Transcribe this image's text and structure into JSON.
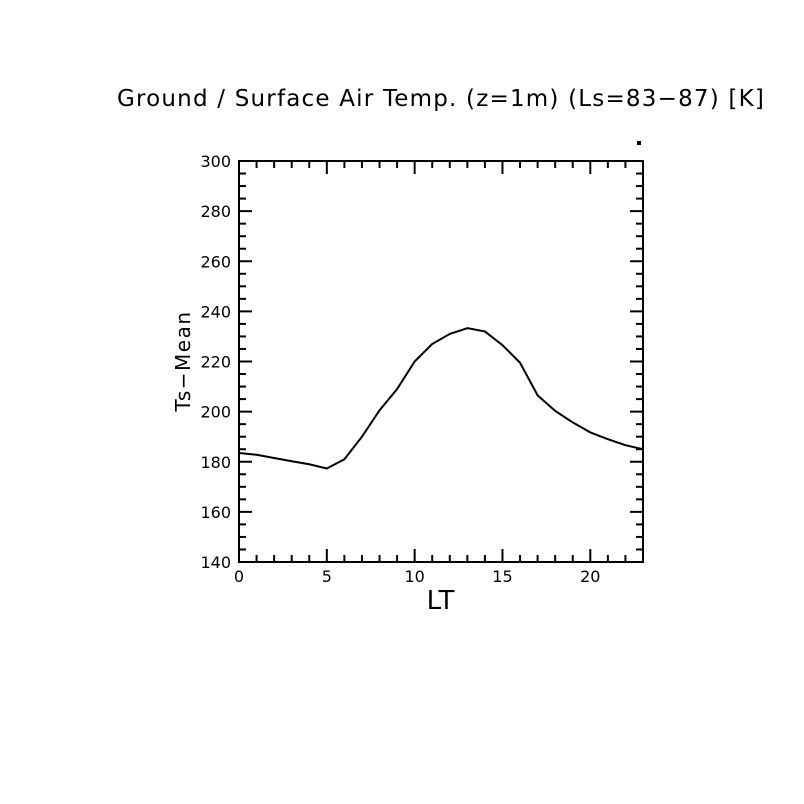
{
  "page": {
    "background": "#ffffff",
    "foreground": "#000000"
  },
  "chart_data": {
    "type": "line",
    "title": "Ground / Surface Air Temp. (z=1m) (Ls=83−87) [K]",
    "xlabel": "LT",
    "ylabel": "Ts−Mean",
    "x": [
      0,
      1,
      2,
      3,
      4,
      5,
      6,
      7,
      8,
      9,
      10,
      11,
      12,
      13,
      14,
      15,
      16,
      17,
      18,
      19,
      20,
      21,
      22,
      23
    ],
    "series": [
      {
        "name": "Ts-Mean",
        "values": [
          183.5,
          182.8,
          181.5,
          180.2,
          179.0,
          177.3,
          181.0,
          190.0,
          200.5,
          209.0,
          220.0,
          227.0,
          231.0,
          233.3,
          232.0,
          226.5,
          219.5,
          206.5,
          200.3,
          195.7,
          191.7,
          189.0,
          186.6,
          185.0
        ]
      }
    ],
    "xlim": [
      0,
      23
    ],
    "ylim": [
      140,
      300
    ],
    "x_major_ticks": [
      0,
      5,
      10,
      15,
      20
    ],
    "x_minor_step": 1,
    "y_major_ticks": [
      140,
      160,
      180,
      200,
      220,
      240,
      260,
      280,
      300
    ],
    "y_minor_step": 5,
    "grid": false,
    "legend": null,
    "line_color": "#000000",
    "axis_color": "#000000",
    "plot_style": "box-axes-inward-ticks"
  },
  "annotations": {
    "stray_dot": {
      "shape": "dot",
      "location": "above top-right corner of plot box"
    }
  }
}
